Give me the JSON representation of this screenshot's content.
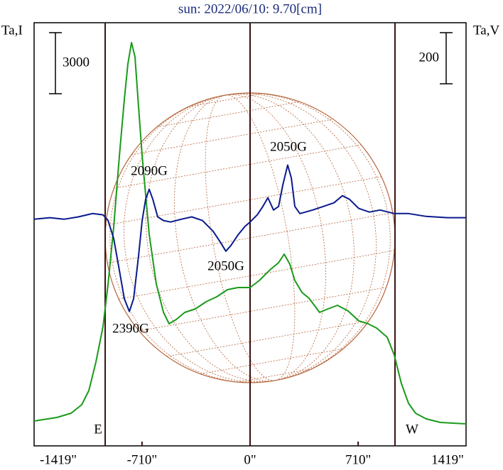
{
  "chart_data": {
    "type": "line",
    "title": "sun: 2022/06/10: 9.70[cm]",
    "ylabel": "Ta,I",
    "y2label": "Ta,V",
    "east_label": "E",
    "west_label": "W",
    "limb": 952,
    "xlim": [
      -1419,
      1419
    ],
    "xticks": [
      {
        "value": -1419,
        "label": "-1419\""
      },
      {
        "value": -710,
        "label": "-710\""
      },
      {
        "value": 0,
        "label": "0\""
      },
      {
        "value": 710,
        "label": "710\""
      },
      {
        "value": 1419,
        "label": "1419\""
      }
    ],
    "ylim": [
      0,
      20800
    ],
    "y2lim": [
      -890,
      766
    ],
    "y_scale_bar": 3000,
    "y2_scale_bar": 200,
    "series": [
      {
        "color": "#1a9a1a",
        "x": [
          -1419,
          -1269,
          -1176,
          -1106,
          -1059,
          -1013,
          -966,
          -933,
          -896,
          -859,
          -826,
          -803,
          -779,
          -756,
          -733,
          -709,
          -663,
          -616,
          -569,
          -532,
          -485,
          -429,
          -359,
          -289,
          -219,
          -149,
          -79,
          0,
          61,
          131,
          187,
          224,
          261,
          294,
          341,
          387,
          457,
          513,
          574,
          644,
          714,
          775,
          831,
          901,
          947,
          994,
          1041,
          1087,
          1157,
          1251,
          1419
        ],
        "values": [
          1222,
          1396,
          1605,
          2024,
          2722,
          4118,
          5863,
          7957,
          10749,
          14239,
          17031,
          18776,
          19823,
          19125,
          16682,
          14239,
          10400,
          7957,
          6561,
          6003,
          6212,
          6561,
          6736,
          7085,
          7329,
          7678,
          7783,
          7783,
          8132,
          8655,
          9004,
          9423,
          8934,
          8132,
          7538,
          7259,
          6561,
          6736,
          6910,
          6631,
          6142,
          6003,
          5793,
          5340,
          4467,
          3071,
          2094,
          1605,
          1326,
          1152,
          1082
        ]
      },
      {
        "color": "#0a1a8c",
        "axis": "y2",
        "x": [
          -1419,
          -1316,
          -1223,
          -1129,
          -1036,
          -966,
          -933,
          -896,
          -859,
          -826,
          -793,
          -765,
          -733,
          -709,
          -686,
          -663,
          -639,
          -607,
          -569,
          -523,
          -453,
          -383,
          -313,
          -243,
          -196,
          -159,
          -126,
          -79,
          -33,
          0,
          47,
          84,
          117,
          154,
          187,
          215,
          247,
          271,
          294,
          327,
          364,
          411,
          481,
          551,
          607,
          653,
          714,
          784,
          854,
          947,
          1041,
          1157,
          1297,
          1419
        ],
        "values": [
          -3,
          3,
          -3,
          6,
          19,
          14,
          -8,
          -78,
          -203,
          -314,
          -364,
          -314,
          -147,
          -8,
          75,
          114,
          75,
          6,
          -8,
          -14,
          -3,
          6,
          -8,
          -50,
          -92,
          -128,
          -106,
          -64,
          -31,
          -14,
          14,
          47,
          81,
          33,
          47,
          131,
          209,
          158,
          47,
          19,
          25,
          33,
          47,
          61,
          89,
          75,
          39,
          25,
          33,
          19,
          19,
          8,
          3,
          3
        ]
      }
    ],
    "annotations": [
      "2090G",
      "2050G",
      "2050G",
      "2390G"
    ]
  }
}
